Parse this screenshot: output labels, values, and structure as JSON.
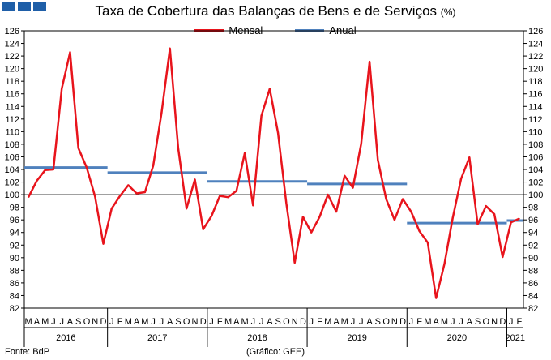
{
  "header": {
    "title": "Taxa de Cobertura das Balanças de Bens e de Serviços",
    "unit": "(%)"
  },
  "footer": {
    "source": "Fonte: BdP",
    "credit": "(Gráfico: GEE)"
  },
  "colors": {
    "mensal": "#e8141c",
    "anual": "#4f81bd",
    "logo": "#1f5fa8"
  },
  "chart_data": {
    "type": "line",
    "ylim": [
      82,
      126
    ],
    "ytick_step": 2,
    "reference_line": 100,
    "grid": false,
    "legend_position": "top-center",
    "series": [
      {
        "name": "Mensal",
        "values": [
          99.6,
          102.2,
          103.9,
          104.0,
          116.8,
          122.6,
          107.4,
          104.3,
          99.7,
          92.2,
          97.8,
          99.8,
          101.5,
          100.2,
          100.4,
          104.6,
          113.0,
          123.2,
          107.4,
          97.8,
          102.4,
          94.5,
          96.6,
          99.8,
          99.6,
          100.6,
          106.6,
          98.3,
          112.5,
          116.8,
          109.8,
          98.6,
          89.2,
          96.5,
          94.0,
          96.5,
          100.0,
          97.3,
          103.0,
          101.1,
          108.1,
          121.1,
          105.5,
          99.3,
          96.0,
          99.3,
          97.3,
          94.2,
          92.4,
          83.6,
          89.0,
          96.3,
          102.5,
          105.9,
          95.3,
          98.2,
          96.9,
          90.1,
          95.6,
          96.2
        ]
      },
      {
        "name": "Anual",
        "segments": [
          {
            "year": "2016",
            "value": 104.3
          },
          {
            "year": "2017",
            "value": 103.5
          },
          {
            "year": "2018",
            "value": 102.1
          },
          {
            "year": "2019",
            "value": 101.7
          },
          {
            "year": "2020",
            "value": 95.5
          },
          {
            "year": "2021",
            "value": 95.9
          }
        ]
      }
    ],
    "month_labels": [
      "M",
      "A",
      "M",
      "J",
      "J",
      "A",
      "S",
      "O",
      "N",
      "D",
      "J",
      "F",
      "M",
      "A",
      "M",
      "J",
      "J",
      "A",
      "S",
      "O",
      "N",
      "D",
      "J",
      "F",
      "M",
      "A",
      "M",
      "J",
      "J",
      "A",
      "S",
      "O",
      "N",
      "D",
      "J",
      "F",
      "M",
      "A",
      "M",
      "J",
      "J",
      "A",
      "S",
      "O",
      "N",
      "D",
      "J",
      "F",
      "M",
      "A",
      "M",
      "J",
      "J",
      "A",
      "S",
      "O",
      "N",
      "D",
      "J",
      "F"
    ],
    "years": [
      {
        "label": "2016",
        "months": 10
      },
      {
        "label": "2017",
        "months": 12
      },
      {
        "label": "2018",
        "months": 12
      },
      {
        "label": "2019",
        "months": 12
      },
      {
        "label": "2020",
        "months": 12
      },
      {
        "label": "2021",
        "months": 2
      }
    ]
  }
}
